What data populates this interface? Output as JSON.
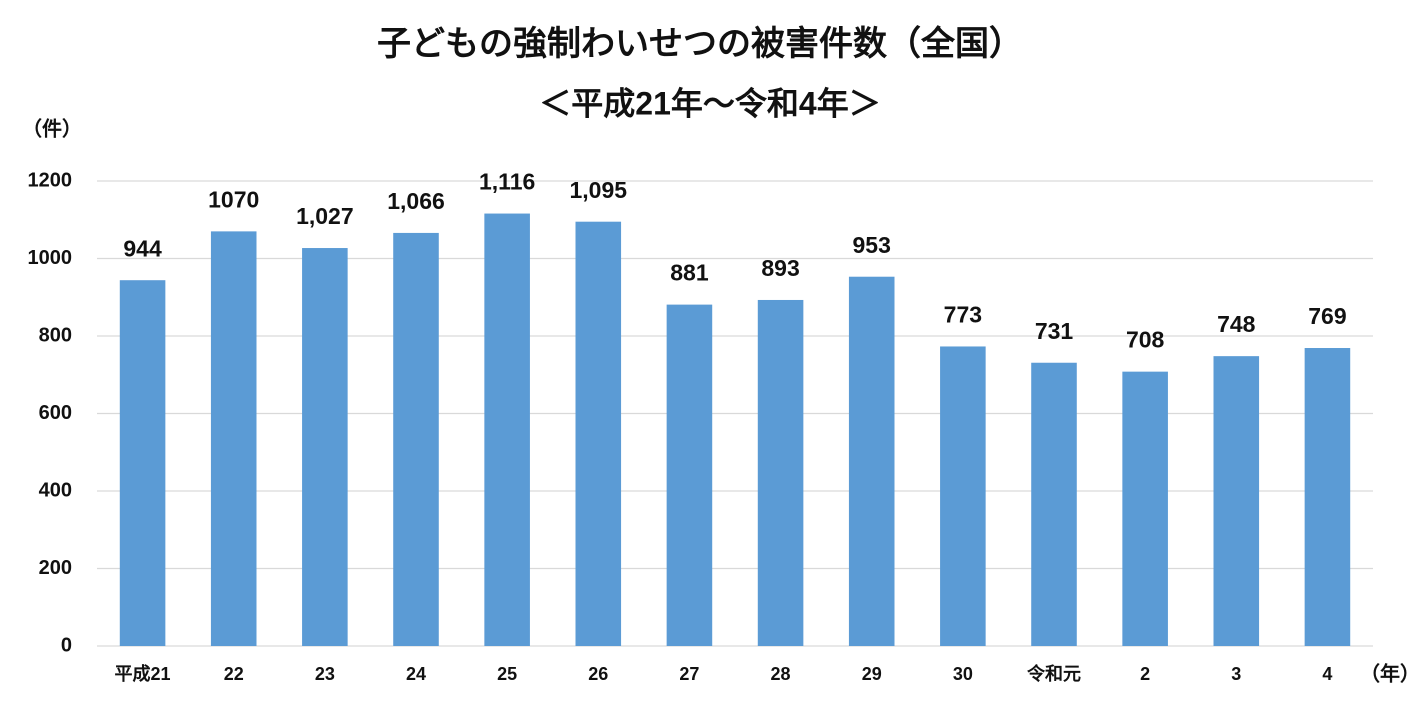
{
  "chart_data": {
    "type": "bar",
    "title": "子どもの強制わいせつの被害件数（全国）",
    "subtitle": "＜平成21年～令和4年＞",
    "y_label": "（件）",
    "x_label": "（年）",
    "categories": [
      "平成21",
      "22",
      "23",
      "24",
      "25",
      "26",
      "27",
      "28",
      "29",
      "30",
      "令和元",
      "2",
      "3",
      "4"
    ],
    "values": [
      944,
      1070,
      1027,
      1066,
      1116,
      1095,
      881,
      893,
      953,
      773,
      731,
      708,
      748,
      769
    ],
    "value_labels": [
      "944",
      "1070",
      "1,027",
      "1,066",
      "1,116",
      "1,095",
      "881",
      "893",
      "953",
      "773",
      "731",
      "708",
      "748",
      "769"
    ],
    "color": "#5b9bd5",
    "ylim": [
      0,
      1200
    ],
    "yticks": [
      0,
      200,
      400,
      600,
      800,
      1000,
      1200
    ],
    "grid": true
  }
}
